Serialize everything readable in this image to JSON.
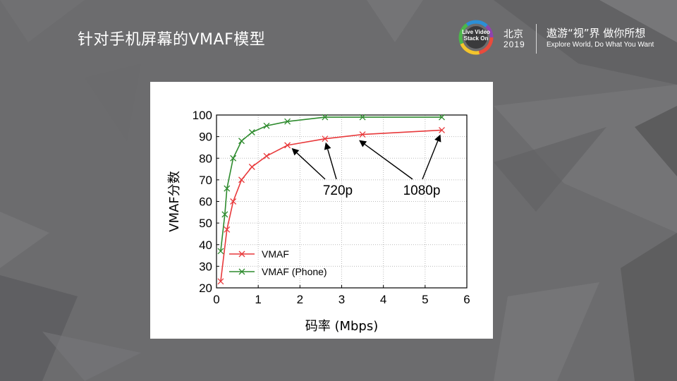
{
  "slide": {
    "title": "针对手机屏幕的VMAF模型"
  },
  "header": {
    "logo_text": "Live Video Stack On",
    "city": "北京",
    "year": "2019",
    "slogan_cn": "遨游“视”界 做你所想",
    "slogan_en": "Explore World, Do What You Want"
  },
  "colors": {
    "background": "#6c6c6e",
    "vmaf": "#e8393b",
    "vmaf_phone": "#2e8b2e"
  },
  "chart_data": {
    "type": "line",
    "xlabel": "码率 (Mbps)",
    "ylabel": "VMAF分数",
    "xlim": [
      0,
      6
    ],
    "ylim": [
      20,
      100
    ],
    "xticks": [
      "0",
      "1",
      "2",
      "3",
      "4",
      "5",
      "6"
    ],
    "yticks": [
      "20",
      "30",
      "40",
      "50",
      "60",
      "70",
      "80",
      "90",
      "100"
    ],
    "grid": true,
    "legend_position": "bottom-left",
    "series": [
      {
        "name": "VMAF",
        "color": "#e8393b",
        "x": [
          0.1,
          0.25,
          0.4,
          0.6,
          0.85,
          1.2,
          1.7,
          2.6,
          3.5,
          5.4
        ],
        "y": [
          23,
          47,
          60,
          70,
          76,
          81,
          86,
          89,
          91,
          93
        ]
      },
      {
        "name": "VMAF (Phone)",
        "color": "#2e8b2e",
        "x": [
          0.1,
          0.2,
          0.25,
          0.4,
          0.6,
          0.85,
          1.2,
          1.7,
          2.6,
          3.5,
          5.4
        ],
        "y": [
          37,
          54,
          66,
          80,
          88,
          92,
          95,
          97,
          99,
          99,
          99
        ]
      }
    ],
    "annotations": [
      {
        "label": "720p"
      },
      {
        "label": "1080p"
      }
    ]
  }
}
